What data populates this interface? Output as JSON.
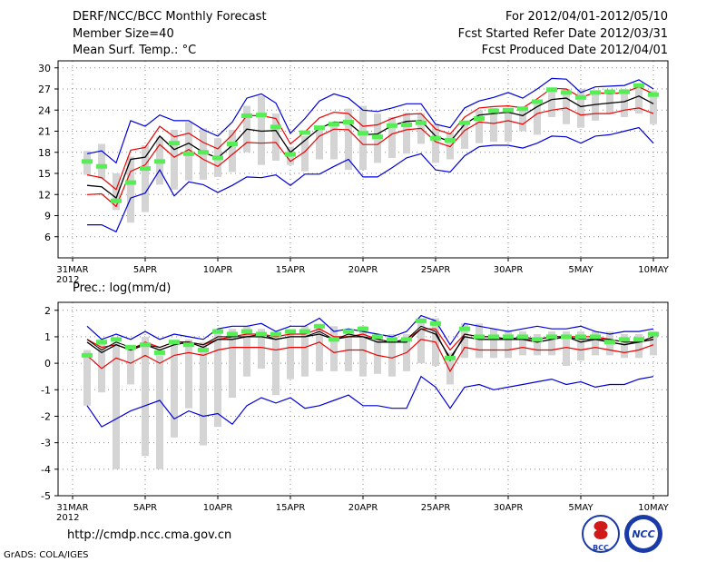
{
  "header": {
    "title": "DERF/NCC/BCC Monthly Forecast",
    "member": "Member Size=40",
    "variable": "Mean Surf. Temp.: °C",
    "period": "For 2012/04/01-2012/05/10",
    "started": "Fcst Started Refer Date 2012/03/31",
    "produced": "Fcst Produced Date 2012/04/01"
  },
  "footer": {
    "url": "http://cmdp.ncc.cma.gov.cn",
    "credit": "GrADS: COLA/IGES",
    "logo_bcc": "BCC",
    "logo_ncc": "NCC"
  },
  "colors": {
    "obs": "#55ee55",
    "ensemble_mean": "#000000",
    "spread": "#ee0000",
    "extremes": "#0000dd",
    "range_bar": "#d4d4d4",
    "grid": "#888888"
  },
  "chart_data": [
    {
      "type": "line",
      "title": "Mean Surf. Temp.: °C",
      "x_tick_labels": [
        "31MAR\n2012",
        "5APR",
        "10APR",
        "15APR",
        "20APR",
        "25APR",
        "30APR",
        "5MAY",
        "10MAY"
      ],
      "x_tick_days": [
        0,
        5,
        10,
        15,
        20,
        25,
        30,
        35,
        40
      ],
      "ylim": [
        3,
        31
      ],
      "y_ticks": [
        6,
        9,
        12,
        15,
        18,
        21,
        24,
        27,
        30
      ],
      "days": [
        1,
        2,
        3,
        4,
        5,
        6,
        7,
        8,
        9,
        10,
        11,
        12,
        13,
        14,
        15,
        16,
        17,
        18,
        19,
        20,
        21,
        22,
        23,
        24,
        25,
        26,
        27,
        28,
        29,
        30,
        31,
        32,
        33,
        34,
        35,
        36,
        37,
        38,
        39,
        40
      ],
      "series": [
        {
          "name": "max",
          "values": [
            17.8,
            18.2,
            16.5,
            22.5,
            21.7,
            23.3,
            22.5,
            22.5,
            21.2,
            20.3,
            22.3,
            25.7,
            26.3,
            25.0,
            20.7,
            22.8,
            25.3,
            26.3,
            25.7,
            24.0,
            23.8,
            24.3,
            24.9,
            24.9,
            22.0,
            21.5,
            24.3,
            25.3,
            25.8,
            26.5,
            25.7,
            27.0,
            28.5,
            28.4,
            26.5,
            27.3,
            27.4,
            27.5,
            28.3,
            27.0
          ]
        },
        {
          "name": "mean_plus_sd",
          "values": [
            14.8,
            14.4,
            12.7,
            18.3,
            18.7,
            21.7,
            20.2,
            20.7,
            19.4,
            18.5,
            20.5,
            23.2,
            23.2,
            22.8,
            19.2,
            20.9,
            22.9,
            23.7,
            23.5,
            21.7,
            21.9,
            22.8,
            23.4,
            23.5,
            21.3,
            20.6,
            23.0,
            24.3,
            24.5,
            24.6,
            24.3,
            25.6,
            27.1,
            27.0,
            25.8,
            26.5,
            26.3,
            26.5,
            27.3,
            26.3
          ]
        },
        {
          "name": "mean",
          "values": [
            13.3,
            13.1,
            11.5,
            17.0,
            17.3,
            20.3,
            18.4,
            19.3,
            18.0,
            17.2,
            19.0,
            21.3,
            21.0,
            21.1,
            18.0,
            19.7,
            21.4,
            22.3,
            22.2,
            20.5,
            20.6,
            21.8,
            22.4,
            22.5,
            20.3,
            19.5,
            22.0,
            23.3,
            23.5,
            23.7,
            23.2,
            24.5,
            25.5,
            25.7,
            24.5,
            24.8,
            25.0,
            25.2,
            26.0,
            24.9
          ]
        },
        {
          "name": "mean_minus_sd",
          "values": [
            12.0,
            12.1,
            10.3,
            15.3,
            16.2,
            19.1,
            17.3,
            18.4,
            17.0,
            16.0,
            17.7,
            19.4,
            19.3,
            19.4,
            16.7,
            18.1,
            20.3,
            21.3,
            21.2,
            19.1,
            19.1,
            20.6,
            21.2,
            21.4,
            19.5,
            18.8,
            21.1,
            22.3,
            22.1,
            22.5,
            22.0,
            23.5,
            24.0,
            24.3,
            23.3,
            23.5,
            23.5,
            24.0,
            24.3,
            23.5
          ]
        },
        {
          "name": "min",
          "values": [
            7.7,
            7.7,
            6.7,
            11.5,
            12.2,
            15.5,
            11.8,
            13.8,
            13.4,
            12.3,
            13.3,
            14.5,
            14.4,
            14.8,
            13.3,
            14.9,
            14.9,
            16.0,
            17.0,
            14.5,
            14.5,
            15.8,
            17.2,
            17.8,
            15.5,
            15.2,
            17.5,
            18.8,
            19.0,
            19.0,
            18.6,
            19.3,
            20.3,
            20.2,
            19.3,
            20.3,
            20.5,
            21.0,
            21.5,
            19.3
          ]
        }
      ],
      "range_bars_high": [
        18.2,
        19.2,
        15.0,
        17.4,
        19.0,
        20.2,
        21.2,
        22.3,
        21.4,
        20.0,
        21.2,
        24.6,
        26.0,
        23.5,
        18.8,
        20.3,
        21.5,
        22.0,
        24.2,
        24.6,
        23.5,
        23.0,
        23.6,
        23.5,
        22.0,
        20.8,
        22.0,
        24.0,
        24.3,
        24.3,
        24.5,
        25.3,
        26.8,
        27.0,
        27.0,
        26.6,
        26.8,
        27.0,
        27.3,
        26.8
      ],
      "range_bars_low": [
        14.8,
        14.2,
        9.8,
        8.0,
        9.5,
        13.4,
        12.7,
        14.0,
        14.1,
        14.5,
        15.2,
        18.0,
        16.2,
        16.8,
        16.2,
        15.3,
        17.0,
        17.0,
        15.5,
        15.5,
        16.5,
        17.2,
        17.8,
        19.2,
        16.5,
        17.0,
        18.5,
        19.3,
        19.5,
        19.5,
        21.0,
        20.5,
        23.0,
        22.0,
        21.5,
        22.5,
        23.5,
        23.0,
        23.5,
        22.0
      ],
      "observed": [
        16.7,
        16.0,
        11.1,
        13.7,
        15.7,
        16.7,
        19.3,
        17.8,
        18.0,
        17.2,
        19.2,
        23.2,
        23.3,
        21.6,
        17.7,
        20.8,
        21.5,
        22.0,
        22.3,
        20.7,
        20.2,
        21.8,
        21.9,
        22.2,
        20.0,
        19.7,
        22.2,
        22.8,
        23.9,
        24.0,
        24.2,
        25.2,
        26.9,
        26.5,
        25.8,
        26.5,
        26.6,
        26.6,
        27.5,
        26.2
      ]
    },
    {
      "type": "line",
      "title": "Prec.: log(mm/d)",
      "x_tick_labels": [
        "31MAR\n2012",
        "5APR",
        "10APR",
        "15APR",
        "20APR",
        "25APR",
        "30APR",
        "5MAY",
        "10MAY"
      ],
      "x_tick_days": [
        0,
        5,
        10,
        15,
        20,
        25,
        30,
        35,
        40
      ],
      "ylim": [
        -5,
        2.3
      ],
      "y_ticks": [
        -5,
        -4,
        -3,
        -2,
        -1,
        0,
        1,
        2
      ],
      "days": [
        1,
        2,
        3,
        4,
        5,
        6,
        7,
        8,
        9,
        10,
        11,
        12,
        13,
        14,
        15,
        16,
        17,
        18,
        19,
        20,
        21,
        22,
        23,
        24,
        25,
        26,
        27,
        28,
        29,
        30,
        31,
        32,
        33,
        34,
        35,
        36,
        37,
        38,
        39,
        40
      ],
      "series": [
        {
          "name": "max",
          "values": [
            1.4,
            0.9,
            1.1,
            0.9,
            1.2,
            0.9,
            1.1,
            1.0,
            0.9,
            1.3,
            1.4,
            1.4,
            1.5,
            1.2,
            1.4,
            1.4,
            1.7,
            1.2,
            1.3,
            1.2,
            1.1,
            1.0,
            1.2,
            1.8,
            1.6,
            0.7,
            1.5,
            1.4,
            1.3,
            1.2,
            1.3,
            1.4,
            1.3,
            1.3,
            1.4,
            1.2,
            1.1,
            1.2,
            1.2,
            1.3
          ]
        },
        {
          "name": "mean_plus_sd",
          "values": [
            0.9,
            0.6,
            0.7,
            0.5,
            0.8,
            0.6,
            0.8,
            0.8,
            0.7,
            0.9,
            1.0,
            1.1,
            1.1,
            1.0,
            1.1,
            1.1,
            1.3,
            1.0,
            1.0,
            1.1,
            0.9,
            0.8,
            0.9,
            1.3,
            1.3,
            0.5,
            1.1,
            1.0,
            1.0,
            0.9,
            0.9,
            0.9,
            1.0,
            1.0,
            1.0,
            1.0,
            0.9,
            0.8,
            0.8,
            1.0
          ]
        },
        {
          "name": "mean",
          "values": [
            0.8,
            0.4,
            0.7,
            0.5,
            0.7,
            0.5,
            0.7,
            0.8,
            0.6,
            0.9,
            0.9,
            1.0,
            1.0,
            0.9,
            1.0,
            1.0,
            1.1,
            0.9,
            1.0,
            1.0,
            0.8,
            0.8,
            0.8,
            1.3,
            1.1,
            0.2,
            1.0,
            0.9,
            0.9,
            0.9,
            0.9,
            0.8,
            0.9,
            1.0,
            0.8,
            0.9,
            0.8,
            0.7,
            0.8,
            0.9
          ]
        },
        {
          "name": "mean_minus_sd",
          "values": [
            0.3,
            -0.2,
            0.2,
            0.0,
            0.3,
            0.0,
            0.3,
            0.4,
            0.3,
            0.5,
            0.6,
            0.6,
            0.6,
            0.5,
            0.6,
            0.6,
            0.8,
            0.4,
            0.5,
            0.5,
            0.3,
            0.2,
            0.4,
            0.9,
            0.8,
            -0.3,
            0.6,
            0.5,
            0.5,
            0.5,
            0.6,
            0.5,
            0.5,
            0.6,
            0.5,
            0.6,
            0.5,
            0.4,
            0.5,
            0.7
          ]
        },
        {
          "name": "min",
          "values": [
            -1.6,
            -2.4,
            -2.1,
            -1.8,
            -1.6,
            -1.4,
            -2.1,
            -1.8,
            -2.0,
            -1.9,
            -2.3,
            -1.6,
            -1.3,
            -1.5,
            -1.3,
            -1.7,
            -1.6,
            -1.4,
            -1.2,
            -1.6,
            -1.6,
            -1.7,
            -1.7,
            -0.5,
            -0.9,
            -1.7,
            -0.9,
            -0.8,
            -1.0,
            -0.9,
            -0.8,
            -0.7,
            -0.6,
            -0.8,
            -0.7,
            -0.9,
            -0.8,
            -0.8,
            -0.6,
            -0.5
          ]
        },
        {
          "name": "obs_line",
          "values": [
            0.9,
            0.5,
            0.8,
            0.6,
            0.7,
            0.6,
            0.8,
            0.8,
            0.7,
            1.0,
            1.0,
            1.0,
            1.1,
            0.9,
            1.0,
            1.0,
            1.2,
            0.9,
            1.1,
            1.0,
            0.9,
            0.8,
            0.9,
            1.4,
            1.2,
            0.1,
            1.1,
            1.0,
            1.0,
            0.9,
            1.0,
            0.9,
            1.0,
            1.0,
            0.9,
            0.9,
            0.9,
            0.8,
            0.8,
            1.0
          ]
        }
      ],
      "range_bars_high": [
        0.5,
        0.8,
        0.8,
        0.7,
        1.0,
        0.3,
        0.8,
        0.9,
        0.8,
        1.3,
        1.3,
        1.4,
        1.3,
        1.0,
        1.2,
        1.4,
        1.4,
        1.4,
        1.3,
        1.4,
        1.1,
        1.1,
        1.1,
        1.7,
        1.7,
        0.4,
        1.5,
        1.5,
        1.3,
        1.2,
        1.2,
        1.1,
        1.2,
        1.2,
        1.2,
        1.2,
        1.2,
        1.1,
        1.1,
        1.2
      ],
      "range_bars_low": [
        -1.6,
        -1.1,
        -4.0,
        -0.8,
        -3.5,
        -4.0,
        -2.8,
        -1.7,
        -3.1,
        -2.4,
        -1.3,
        -0.5,
        -0.2,
        -1.2,
        -0.6,
        -0.5,
        -0.3,
        -0.3,
        -0.3,
        -0.5,
        -0.4,
        -0.5,
        -0.3,
        0.0,
        -0.1,
        -0.8,
        0.2,
        0.2,
        0.2,
        0.2,
        0.3,
        0.3,
        0.3,
        -0.1,
        0.1,
        0.3,
        0.3,
        0.2,
        0.2,
        0.3
      ],
      "observed": [
        0.3,
        0.8,
        0.9,
        0.6,
        0.7,
        0.4,
        0.8,
        0.7,
        0.5,
        1.2,
        1.1,
        1.2,
        1.1,
        1.1,
        1.2,
        1.2,
        1.4,
        0.9,
        1.2,
        1.3,
        1.0,
        0.9,
        0.9,
        1.6,
        1.5,
        0.2,
        1.3,
        1.0,
        1.0,
        1.0,
        1.0,
        0.9,
        1.0,
        1.0,
        1.0,
        1.0,
        0.8,
        0.9,
        0.9,
        1.1
      ]
    }
  ]
}
